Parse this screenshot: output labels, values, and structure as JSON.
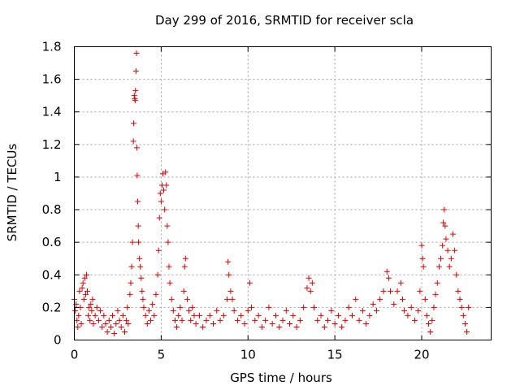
{
  "chart_data": {
    "type": "scatter",
    "title": "Day 299 of 2016, SRMTID for receiver scla",
    "xlabel": "GPS time / hours",
    "ylabel": "SRMTID / TECUs",
    "xlim": [
      0,
      24
    ],
    "ylim": [
      0,
      1.8
    ],
    "xticks": [
      0,
      5,
      10,
      15,
      20
    ],
    "xtick_labels": [
      "0",
      "5",
      "10",
      "15",
      "20"
    ],
    "yticks": [
      0,
      0.2,
      0.4,
      0.6,
      0.8,
      1,
      1.2,
      1.4,
      1.6,
      1.8
    ],
    "ytick_labels": [
      "0",
      "0.2",
      "0.4",
      "0.6",
      "0.8",
      "1",
      "1.2",
      "1.4",
      "1.6",
      "1.8"
    ],
    "grid": true,
    "marker": "plus",
    "marker_color": "#e00000",
    "series": [
      {
        "name": "SRMTID",
        "points": [
          [
            0.0,
            0.25
          ],
          [
            0.05,
            0.18
          ],
          [
            0.1,
            0.22
          ],
          [
            0.15,
            0.12
          ],
          [
            0.2,
            0.08
          ],
          [
            0.25,
            0.15
          ],
          [
            0.3,
            0.3
          ],
          [
            0.35,
            0.2
          ],
          [
            0.4,
            0.1
          ],
          [
            0.45,
            0.32
          ],
          [
            0.5,
            0.35
          ],
          [
            0.55,
            0.25
          ],
          [
            0.6,
            0.38
          ],
          [
            0.65,
            0.28
          ],
          [
            0.7,
            0.4
          ],
          [
            0.75,
            0.3
          ],
          [
            0.8,
            0.15
          ],
          [
            0.85,
            0.2
          ],
          [
            0.9,
            0.12
          ],
          [
            0.95,
            0.22
          ],
          [
            1.0,
            0.18
          ],
          [
            1.05,
            0.25
          ],
          [
            1.1,
            0.1
          ],
          [
            1.2,
            0.15
          ],
          [
            1.3,
            0.2
          ],
          [
            1.4,
            0.12
          ],
          [
            1.5,
            0.18
          ],
          [
            1.6,
            0.08
          ],
          [
            1.7,
            0.15
          ],
          [
            1.8,
            0.1
          ],
          [
            1.9,
            0.05
          ],
          [
            2.0,
            0.12
          ],
          [
            2.1,
            0.08
          ],
          [
            2.2,
            0.15
          ],
          [
            2.3,
            0.04
          ],
          [
            2.4,
            0.1
          ],
          [
            2.5,
            0.18
          ],
          [
            2.6,
            0.12
          ],
          [
            2.7,
            0.08
          ],
          [
            2.8,
            0.15
          ],
          [
            2.9,
            0.05
          ],
          [
            3.0,
            0.12
          ],
          [
            3.05,
            0.2
          ],
          [
            3.1,
            0.1
          ],
          [
            3.2,
            0.28
          ],
          [
            3.25,
            0.35
          ],
          [
            3.3,
            0.45
          ],
          [
            3.35,
            0.6
          ],
          [
            3.4,
            1.22
          ],
          [
            3.42,
            1.33
          ],
          [
            3.45,
            1.5
          ],
          [
            3.48,
            1.48
          ],
          [
            3.5,
            1.47
          ],
          [
            3.52,
            1.53
          ],
          [
            3.55,
            1.65
          ],
          [
            3.58,
            1.76
          ],
          [
            3.6,
            1.18
          ],
          [
            3.62,
            1.01
          ],
          [
            3.65,
            0.85
          ],
          [
            3.68,
            0.7
          ],
          [
            3.7,
            0.6
          ],
          [
            3.75,
            0.5
          ],
          [
            3.8,
            0.45
          ],
          [
            3.85,
            0.38
          ],
          [
            3.9,
            0.3
          ],
          [
            3.95,
            0.25
          ],
          [
            4.0,
            0.2
          ],
          [
            4.1,
            0.15
          ],
          [
            4.2,
            0.1
          ],
          [
            4.3,
            0.18
          ],
          [
            4.4,
            0.12
          ],
          [
            4.5,
            0.22
          ],
          [
            4.6,
            0.15
          ],
          [
            4.7,
            0.28
          ],
          [
            4.8,
            0.4
          ],
          [
            4.85,
            0.55
          ],
          [
            4.9,
            0.75
          ],
          [
            4.95,
            0.9
          ],
          [
            5.0,
            0.85
          ],
          [
            5.05,
            0.95
          ],
          [
            5.1,
            1.02
          ],
          [
            5.15,
            0.92
          ],
          [
            5.2,
            0.8
          ],
          [
            5.25,
            1.03
          ],
          [
            5.3,
            0.95
          ],
          [
            5.35,
            0.7
          ],
          [
            5.4,
            0.6
          ],
          [
            5.45,
            0.45
          ],
          [
            5.5,
            0.35
          ],
          [
            5.6,
            0.25
          ],
          [
            5.7,
            0.18
          ],
          [
            5.8,
            0.12
          ],
          [
            5.9,
            0.08
          ],
          [
            6.0,
            0.15
          ],
          [
            6.1,
            0.2
          ],
          [
            6.2,
            0.12
          ],
          [
            6.3,
            0.3
          ],
          [
            6.35,
            0.45
          ],
          [
            6.4,
            0.5
          ],
          [
            6.5,
            0.25
          ],
          [
            6.6,
            0.18
          ],
          [
            6.7,
            0.12
          ],
          [
            6.8,
            0.2
          ],
          [
            6.9,
            0.15
          ],
          [
            7.0,
            0.1
          ],
          [
            7.2,
            0.15
          ],
          [
            7.4,
            0.08
          ],
          [
            7.6,
            0.12
          ],
          [
            7.8,
            0.15
          ],
          [
            8.0,
            0.1
          ],
          [
            8.2,
            0.18
          ],
          [
            8.4,
            0.12
          ],
          [
            8.6,
            0.15
          ],
          [
            8.8,
            0.25
          ],
          [
            8.85,
            0.48
          ],
          [
            8.9,
            0.4
          ],
          [
            9.0,
            0.3
          ],
          [
            9.1,
            0.25
          ],
          [
            9.2,
            0.18
          ],
          [
            9.4,
            0.12
          ],
          [
            9.6,
            0.15
          ],
          [
            9.8,
            0.1
          ],
          [
            10.0,
            0.18
          ],
          [
            10.1,
            0.35
          ],
          [
            10.2,
            0.2
          ],
          [
            10.4,
            0.12
          ],
          [
            10.6,
            0.15
          ],
          [
            10.8,
            0.08
          ],
          [
            11.0,
            0.12
          ],
          [
            11.2,
            0.2
          ],
          [
            11.4,
            0.1
          ],
          [
            11.6,
            0.15
          ],
          [
            11.8,
            0.08
          ],
          [
            12.0,
            0.12
          ],
          [
            12.2,
            0.18
          ],
          [
            12.4,
            0.1
          ],
          [
            12.6,
            0.15
          ],
          [
            12.8,
            0.08
          ],
          [
            13.0,
            0.12
          ],
          [
            13.2,
            0.2
          ],
          [
            13.4,
            0.32
          ],
          [
            13.5,
            0.38
          ],
          [
            13.6,
            0.3
          ],
          [
            13.7,
            0.35
          ],
          [
            13.8,
            0.2
          ],
          [
            14.0,
            0.12
          ],
          [
            14.2,
            0.15
          ],
          [
            14.4,
            0.08
          ],
          [
            14.6,
            0.12
          ],
          [
            14.8,
            0.18
          ],
          [
            15.0,
            0.1
          ],
          [
            15.2,
            0.15
          ],
          [
            15.4,
            0.08
          ],
          [
            15.6,
            0.12
          ],
          [
            15.8,
            0.2
          ],
          [
            16.0,
            0.15
          ],
          [
            16.2,
            0.25
          ],
          [
            16.4,
            0.12
          ],
          [
            16.6,
            0.18
          ],
          [
            16.8,
            0.1
          ],
          [
            17.0,
            0.15
          ],
          [
            17.2,
            0.22
          ],
          [
            17.4,
            0.18
          ],
          [
            17.6,
            0.25
          ],
          [
            17.8,
            0.3
          ],
          [
            18.0,
            0.42
          ],
          [
            18.1,
            0.38
          ],
          [
            18.2,
            0.3
          ],
          [
            18.4,
            0.22
          ],
          [
            18.6,
            0.3
          ],
          [
            18.8,
            0.35
          ],
          [
            18.9,
            0.25
          ],
          [
            19.0,
            0.18
          ],
          [
            19.2,
            0.15
          ],
          [
            19.4,
            0.2
          ],
          [
            19.6,
            0.12
          ],
          [
            19.8,
            0.18
          ],
          [
            19.9,
            0.3
          ],
          [
            20.0,
            0.58
          ],
          [
            20.05,
            0.5
          ],
          [
            20.1,
            0.45
          ],
          [
            20.2,
            0.25
          ],
          [
            20.3,
            0.15
          ],
          [
            20.4,
            0.1
          ],
          [
            20.5,
            0.05
          ],
          [
            20.6,
            0.12
          ],
          [
            20.7,
            0.2
          ],
          [
            20.8,
            0.28
          ],
          [
            20.9,
            0.35
          ],
          [
            21.0,
            0.45
          ],
          [
            21.1,
            0.5
          ],
          [
            21.2,
            0.58
          ],
          [
            21.25,
            0.72
          ],
          [
            21.3,
            0.8
          ],
          [
            21.35,
            0.7
          ],
          [
            21.4,
            0.62
          ],
          [
            21.5,
            0.55
          ],
          [
            21.6,
            0.45
          ],
          [
            21.7,
            0.5
          ],
          [
            21.8,
            0.65
          ],
          [
            21.9,
            0.55
          ],
          [
            22.0,
            0.4
          ],
          [
            22.1,
            0.3
          ],
          [
            22.2,
            0.25
          ],
          [
            22.3,
            0.2
          ],
          [
            22.4,
            0.15
          ],
          [
            22.5,
            0.1
          ],
          [
            22.6,
            0.05
          ],
          [
            22.7,
            0.2
          ]
        ]
      }
    ]
  }
}
